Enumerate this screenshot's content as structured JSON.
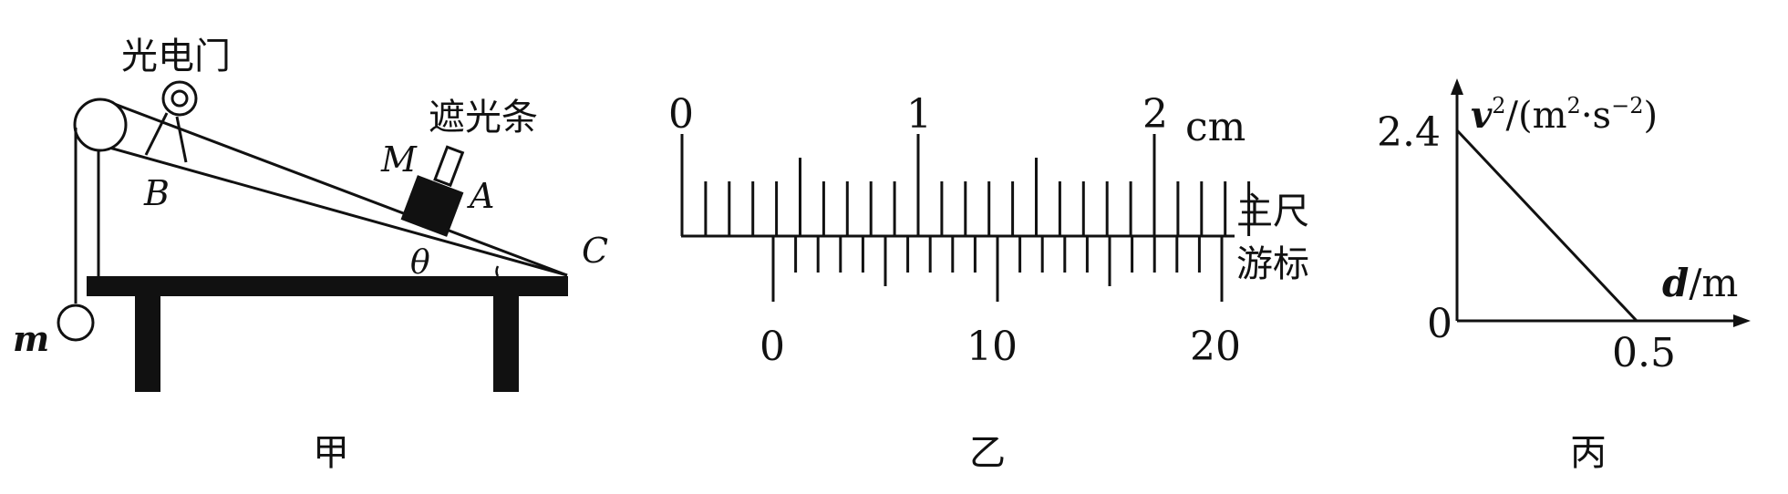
{
  "figure_jia": {
    "caption": "甲",
    "photogate_label": "光电门",
    "shutter_label": "遮光条",
    "point_b": "B",
    "point_m_upper": "M",
    "point_a": "A",
    "point_c": "C",
    "angle_label": "θ",
    "hanging_mass_label": "m"
  },
  "figure_yi": {
    "caption": "乙",
    "main_scale_label": "主尺",
    "vernier_label": "游标",
    "unit": "cm",
    "main_numbers": [
      "0",
      "1",
      "2"
    ],
    "vernier_numbers": [
      "0",
      "10",
      "20"
    ]
  },
  "figure_bing": {
    "caption": "丙",
    "y_axis_label_base": "v",
    "y_axis_label_sup": "2",
    "y_axis_label_rest": "/(m",
    "y_axis_unit_sup1": "2",
    "y_axis_unit_mid": "·s",
    "y_axis_unit_sup2": "−2",
    "y_axis_unit_end": ")",
    "x_axis_label_base": "d",
    "x_axis_label_rest": "/m",
    "origin_label": "0",
    "y_intercept_label": "2.4",
    "x_intercept_label": "0.5"
  },
  "chart_data": {
    "type": "line",
    "x": [
      0,
      0.5
    ],
    "y": [
      2.4,
      0
    ],
    "xlabel": "d/m",
    "ylabel": "v²/(m²·s⁻²)",
    "xlim": [
      0,
      0.5
    ],
    "ylim": [
      0,
      2.4
    ]
  }
}
